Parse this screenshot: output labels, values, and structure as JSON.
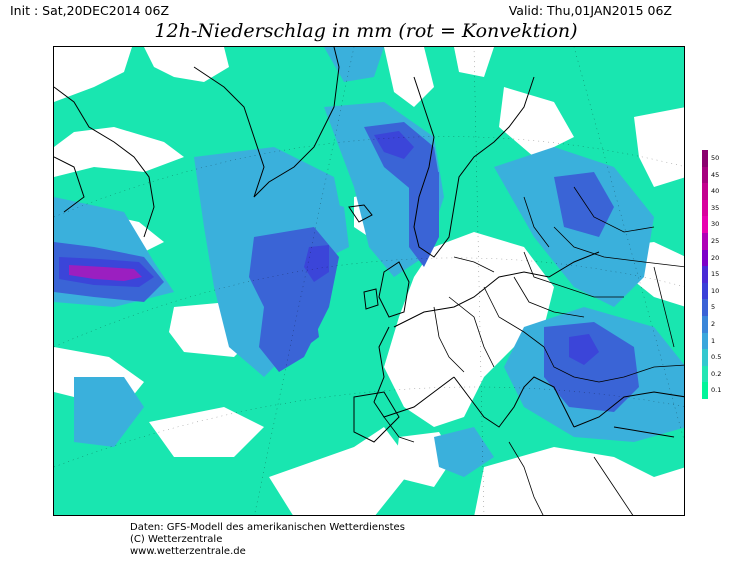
{
  "header": {
    "init": "Init : Sat,20DEC2014 06Z",
    "valid": "Valid: Thu,01JAN2015 06Z",
    "title": "12h-Niederschlag in mm (rot = Konvektion)"
  },
  "legend": {
    "labels": [
      "50",
      "45",
      "40",
      "35",
      "30",
      "25",
      "20",
      "15",
      "10",
      "5",
      "2",
      "1",
      "0.5",
      "0.2",
      "0.1"
    ],
    "colors": [
      "#8a006e",
      "#a6007e",
      "#c3008e",
      "#d9009e",
      "#e800b0",
      "#b000b6",
      "#7d00c8",
      "#4a2ad6",
      "#3a40d8",
      "#3b62d6",
      "#3a86d9",
      "#3aa6dc",
      "#33c8cf",
      "#22e6b4",
      "#00f59a"
    ]
  },
  "footer": {
    "line1": "Daten: GFS-Modell des amerikanischen Wetterdienstes",
    "line2": "(C) Wetterzentrale",
    "line3": "www.wetterzentrale.de"
  },
  "map": {
    "colors": {
      "dry": "#ffffff",
      "light": "#19e6b0",
      "p05": "#3ad0cf",
      "p1": "#3ab0dc",
      "p2": "#3a8ad8",
      "p5": "#3a64d6",
      "p10": "#3b45d9",
      "p20": "#6a2ad0",
      "p25": "#9b1fc0",
      "coast": "#000000",
      "border": "#000000"
    }
  }
}
